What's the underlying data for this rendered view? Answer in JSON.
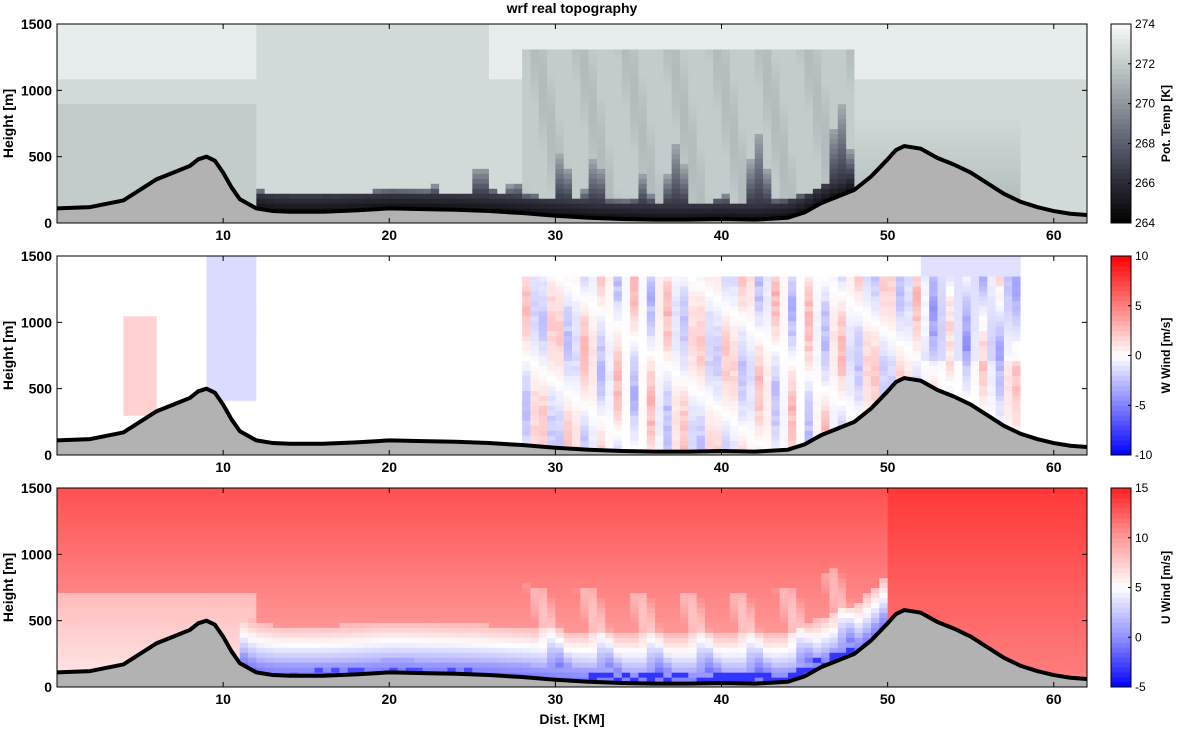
{
  "figure": {
    "title": "wrf real topography",
    "xlabel": "Dist. [KM]"
  },
  "colors": {
    "terrain": "#b2b2b2",
    "terrain_outline": "#000000"
  },
  "chart_data": [
    {
      "type": "heatmap",
      "title": "wrf real topography",
      "xlabel": "",
      "ylabel": "Height [m]",
      "xlim": [
        0,
        62
      ],
      "ylim": [
        0,
        1500
      ],
      "xticks": [
        10,
        20,
        30,
        40,
        50,
        60
      ],
      "yticks": [
        0,
        500,
        1000,
        1500
      ],
      "colorbar": {
        "label": "Pot. Temp [K]",
        "range": [
          264,
          274
        ],
        "ticks": [
          264,
          266,
          268,
          270,
          272,
          274
        ],
        "colors": [
          "#000000",
          "#2a2a36",
          "#5a5e6e",
          "#8e959c",
          "#c2cccb",
          "#f7fbfa"
        ]
      },
      "field_notes": "cold stable layer (~264-266 K) in valley from 12 to 48 km below ~200 m with wave plumes to ~700 m; ~272-273 K above",
      "terrain": {
        "x": [
          0,
          2,
          4,
          5,
          6,
          7,
          8,
          8.5,
          9,
          9.5,
          10,
          10.5,
          11,
          12,
          13,
          14,
          16,
          18,
          20,
          22,
          24,
          26,
          28,
          30,
          32,
          34,
          36,
          38,
          40,
          42,
          44,
          45,
          46,
          47,
          48,
          49,
          50,
          50.5,
          51,
          52,
          53,
          54,
          55,
          56,
          57,
          58,
          59,
          60,
          61,
          62
        ],
        "height": [
          110,
          120,
          170,
          250,
          330,
          380,
          430,
          480,
          500,
          470,
          380,
          270,
          180,
          110,
          90,
          85,
          85,
          95,
          110,
          105,
          100,
          90,
          75,
          55,
          40,
          30,
          25,
          25,
          30,
          25,
          40,
          80,
          150,
          200,
          250,
          350,
          480,
          550,
          580,
          560,
          490,
          440,
          380,
          300,
          220,
          160,
          120,
          90,
          70,
          60
        ]
      }
    },
    {
      "type": "heatmap",
      "title": "",
      "xlabel": "",
      "ylabel": "Height [m]",
      "xlim": [
        0,
        62
      ],
      "ylim": [
        0,
        1500
      ],
      "xticks": [
        10,
        20,
        30,
        40,
        50,
        60
      ],
      "yticks": [
        0,
        500,
        1000,
        1500
      ],
      "colorbar": {
        "label": "W Wind [m/s]",
        "range": [
          -10,
          10
        ],
        "ticks": [
          -10,
          -5,
          0,
          5,
          10
        ],
        "colors": [
          "#0000ff",
          "#8080ff",
          "#ffffff",
          "#ff8080",
          "#ff0000"
        ]
      },
      "field_notes": "weak updraft near x 5-6 and 33 km, downdraft 9-11 km; alternating thin +/- 2 m/s streaks 28-58 km",
      "terrain_ref": 0
    },
    {
      "type": "heatmap",
      "title": "",
      "xlabel": "Dist. [KM]",
      "ylabel": "Height [m]",
      "xlim": [
        0,
        62
      ],
      "ylim": [
        0,
        1500
      ],
      "xticks": [
        10,
        20,
        30,
        40,
        50,
        60
      ],
      "yticks": [
        0,
        500,
        1000,
        1500
      ],
      "colorbar": {
        "label": "U Wind [m/s]",
        "range": [
          -5,
          15
        ],
        "ticks": [
          -5,
          0,
          5,
          10,
          15
        ],
        "colors": [
          "#0000ff",
          "#9090ff",
          "#ffffff",
          "#ff9a9a",
          "#ff2020"
        ]
      },
      "field_notes": "strong westerly ~10-14 m/s aloft, weak/negative flow in valley near surface (-2 to -4 m/s) between 12-48 km",
      "terrain_ref": 0
    }
  ]
}
